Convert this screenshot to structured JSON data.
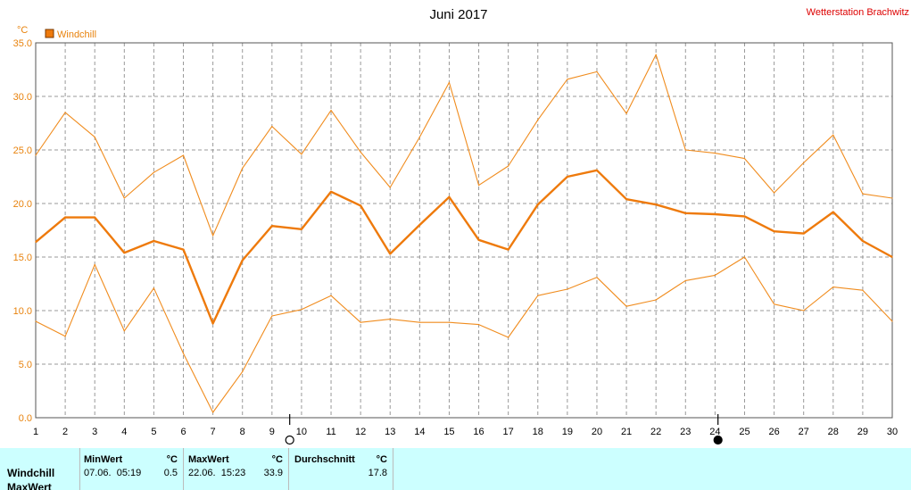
{
  "header": {
    "title": "Juni 2017",
    "station": "Wetterstation Brachwitz"
  },
  "chart_data": {
    "type": "line",
    "unit": "°C",
    "legend": "Windchill",
    "legend_position": "top-left",
    "x": [
      1,
      2,
      3,
      4,
      5,
      6,
      7,
      8,
      9,
      10,
      11,
      12,
      13,
      14,
      15,
      16,
      17,
      18,
      19,
      20,
      21,
      22,
      23,
      24,
      25,
      26,
      27,
      28,
      29,
      30
    ],
    "xlim": [
      1,
      30
    ],
    "ylim": [
      0,
      35
    ],
    "yticks": [
      "0.0",
      "5.0",
      "10.0",
      "15.0",
      "20.0",
      "25.0",
      "30.0",
      "35.0"
    ],
    "grid": true,
    "series": [
      {
        "name": "Windchill",
        "role": "max",
        "values": [
          24.5,
          28.5,
          26.2,
          20.5,
          22.9,
          24.5,
          17.0,
          23.3,
          27.2,
          24.6,
          28.7,
          24.8,
          21.5,
          26.2,
          31.3,
          21.7,
          23.5,
          27.8,
          31.6,
          32.3,
          28.4,
          33.9,
          25.0,
          24.7,
          24.2,
          21.0,
          23.8,
          26.4,
          20.9,
          20.5
        ]
      },
      {
        "name": "Windchill",
        "role": "avg",
        "values": [
          16.4,
          18.7,
          18.7,
          15.4,
          16.5,
          15.7,
          8.8,
          14.7,
          17.9,
          17.6,
          21.1,
          19.8,
          15.3,
          18.0,
          20.6,
          16.6,
          15.7,
          19.9,
          22.5,
          23.1,
          20.4,
          19.9,
          19.1,
          19.0,
          18.8,
          17.4,
          17.2,
          19.2,
          16.5,
          15.0
        ]
      },
      {
        "name": "Windchill",
        "role": "min",
        "values": [
          9.0,
          7.6,
          14.3,
          8.1,
          12.1,
          6.0,
          0.5,
          4.3,
          9.5,
          10.1,
          11.4,
          8.9,
          9.2,
          8.9,
          8.9,
          8.7,
          7.5,
          11.4,
          12.0,
          13.1,
          10.4,
          11.0,
          12.8,
          13.3,
          15.0,
          10.6,
          10.0,
          12.2,
          11.9,
          9.0
        ]
      }
    ],
    "markers": [
      {
        "day": 9.6,
        "symbol": "open-circle"
      },
      {
        "day": 24.1,
        "symbol": "filled-circle"
      }
    ],
    "colors": {
      "thin": "#f08c1e",
      "thick": "#ee7a0c",
      "axis_unit": "#e8820c",
      "station": "#dd0000"
    }
  },
  "footer": {
    "col_minwert": {
      "header": "MinWert",
      "unit": "°C"
    },
    "col_maxwert": {
      "header": "MaxWert",
      "unit": "°C"
    },
    "col_durch": {
      "header": "Durchschnitt",
      "unit": "°C"
    },
    "rows": [
      {
        "label": "Windchill",
        "min_date": "07.06.  05:19",
        "min_value": "0.5",
        "max_date": "22.06.  15:23",
        "max_value": "33.9",
        "avg": "17.8"
      },
      {
        "label": "MaxWert"
      }
    ]
  }
}
